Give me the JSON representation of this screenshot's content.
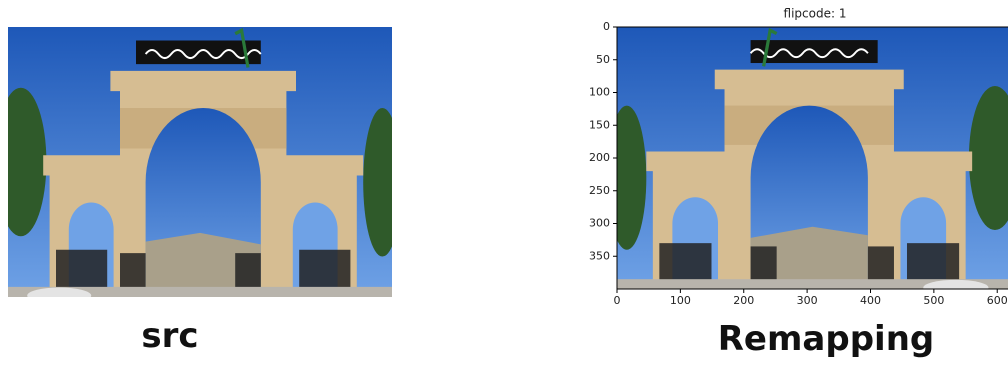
{
  "left_label": "src",
  "right_label": "Remapping",
  "chart_data": {
    "type": "image",
    "title": "flipcode: 1",
    "xlim": [
      0,
      617
    ],
    "ylim": [
      400,
      0
    ],
    "xticks": [
      0,
      100,
      200,
      300,
      400,
      500,
      600
    ],
    "yticks": [
      0,
      50,
      100,
      150,
      200,
      250,
      300,
      350
    ],
    "flip_horizontal": true
  }
}
